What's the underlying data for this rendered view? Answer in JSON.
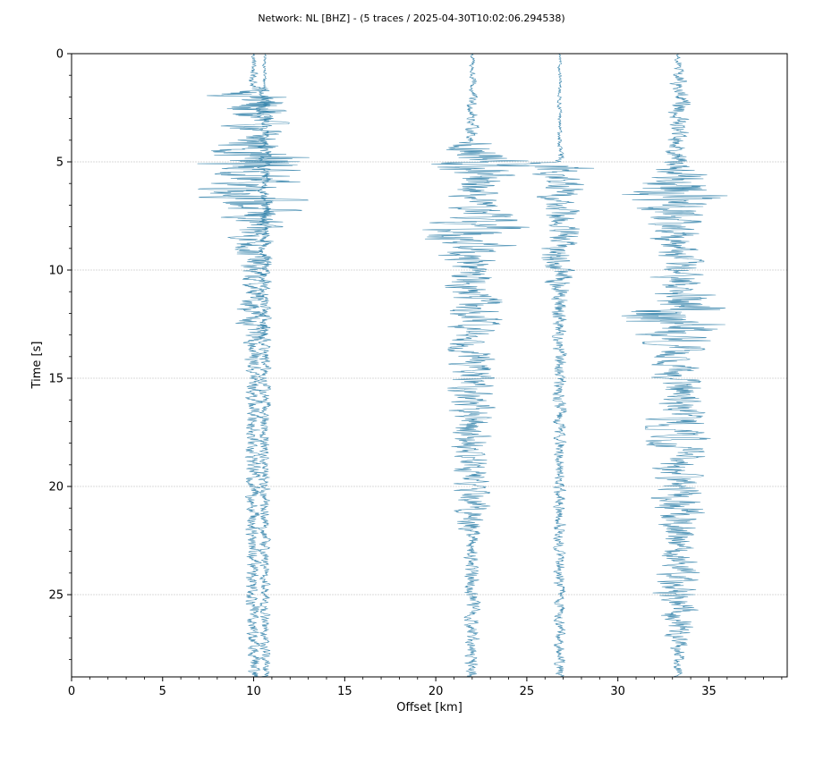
{
  "chart_data": {
    "type": "line",
    "title": "Network: NL [BHZ] - (5 traces / 2025-04-30T10:02:06.294538)",
    "xlabel": "Offset [km]",
    "ylabel": "Time [s]",
    "xlim": [
      0,
      39.3
    ],
    "ylim": [
      0,
      28.8
    ],
    "y_inverted": true,
    "x_ticks": [
      0,
      5,
      10,
      15,
      20,
      25,
      30,
      35
    ],
    "x_tick_labels": [
      "0",
      "5",
      "10",
      "15",
      "20",
      "25",
      "30",
      "35"
    ],
    "x_minor_step": 1,
    "y_ticks": [
      0,
      5,
      10,
      15,
      20,
      25
    ],
    "y_tick_labels": [
      "0",
      "5",
      "10",
      "15",
      "20",
      "25"
    ],
    "y_minor_step": 1,
    "grid": "horizontal at major y ticks",
    "trace_color": "#2e7fa8",
    "grid_color": "#d9d9d9",
    "series": [
      {
        "offset_km": 10.0,
        "t_end": 28.8,
        "envelope": [
          [
            0,
            0.15
          ],
          [
            1.5,
            0.3
          ],
          [
            2.0,
            2.9
          ],
          [
            2.8,
            2.5
          ],
          [
            3.5,
            1.6
          ],
          [
            4.5,
            2.4
          ],
          [
            5.0,
            4.8
          ],
          [
            5.5,
            2.0
          ],
          [
            6.0,
            3.1
          ],
          [
            7.0,
            3.0
          ],
          [
            8.0,
            1.6
          ],
          [
            9.0,
            1.3
          ],
          [
            10.0,
            0.9
          ],
          [
            11.0,
            0.7
          ],
          [
            12.0,
            1.0
          ],
          [
            12.5,
            1.0
          ],
          [
            13.5,
            0.5
          ],
          [
            28.8,
            0.4
          ]
        ]
      },
      {
        "offset_km": 10.6,
        "t_end": 28.8,
        "envelope": [
          [
            0,
            0.1
          ],
          [
            1.5,
            0.15
          ],
          [
            2.0,
            0.5
          ],
          [
            4.0,
            0.4
          ],
          [
            6.0,
            0.4
          ],
          [
            28.8,
            0.3
          ]
        ]
      },
      {
        "offset_km": 22.0,
        "t_end": 28.8,
        "envelope": [
          [
            0,
            0.15
          ],
          [
            2.0,
            0.3
          ],
          [
            4.0,
            0.4
          ],
          [
            4.4,
            2.5
          ],
          [
            5.0,
            3.6
          ],
          [
            5.5,
            2.7
          ],
          [
            6.0,
            1.5
          ],
          [
            7.0,
            1.3
          ],
          [
            8.0,
            3.4
          ],
          [
            9.0,
            2.3
          ],
          [
            10.0,
            1.4
          ],
          [
            11.0,
            1.6
          ],
          [
            12.0,
            1.8
          ],
          [
            13.0,
            1.3
          ],
          [
            15.0,
            1.4
          ],
          [
            16.0,
            1.3
          ],
          [
            18.0,
            1.2
          ],
          [
            20.0,
            1.0
          ],
          [
            22.0,
            1.0
          ],
          [
            22.2,
            0.5
          ],
          [
            28.8,
            0.4
          ]
        ]
      },
      {
        "offset_km": 26.8,
        "t_end": 28.8,
        "envelope": [
          [
            0,
            0.1
          ],
          [
            4.0,
            0.15
          ],
          [
            5.0,
            0.3
          ],
          [
            5.1,
            3.8
          ],
          [
            5.4,
            1.5
          ],
          [
            6.0,
            1.5
          ],
          [
            7.0,
            1.1
          ],
          [
            9.0,
            1.1
          ],
          [
            10.0,
            1.1
          ],
          [
            11.0,
            0.6
          ],
          [
            13.0,
            0.4
          ],
          [
            28.8,
            0.3
          ]
        ]
      },
      {
        "offset_km": 33.3,
        "t_end": 28.8,
        "envelope": [
          [
            0,
            0.1
          ],
          [
            1.0,
            0.4
          ],
          [
            2.0,
            0.7
          ],
          [
            4.0,
            0.6
          ],
          [
            5.0,
            0.8
          ],
          [
            6.0,
            2.5
          ],
          [
            6.3,
            4.4
          ],
          [
            7.0,
            2.5
          ],
          [
            8.0,
            1.6
          ],
          [
            10.0,
            1.4
          ],
          [
            11.0,
            1.8
          ],
          [
            11.6,
            2.9
          ],
          [
            12.2,
            3.9
          ],
          [
            13.0,
            2.3
          ],
          [
            14.0,
            1.4
          ],
          [
            17.0,
            1.8
          ],
          [
            18.0,
            1.8
          ],
          [
            19.0,
            1.4
          ],
          [
            21.0,
            1.5
          ],
          [
            22.0,
            1.4
          ],
          [
            23.0,
            1.0
          ],
          [
            25.0,
            1.4
          ],
          [
            26.0,
            1.0
          ],
          [
            27.0,
            0.8
          ],
          [
            28.0,
            0.3
          ],
          [
            28.8,
            0.3
          ]
        ]
      }
    ]
  }
}
